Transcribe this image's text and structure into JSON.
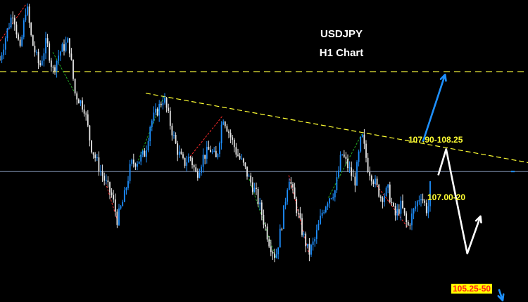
{
  "title": "USDJPY",
  "subtitle": "H1 Chart",
  "colors": {
    "background": "#000000",
    "bull_candle": "#1e90ff",
    "bear_candle": "#e8e8e8",
    "resistance_line": "#cccc33",
    "trendline": "#ffff33",
    "current_price_line": "#7f8fb0",
    "projection_blue": "#1e90ff",
    "projection_white": "#ffffff",
    "zigzag_red": "#ff2a2a",
    "zigzag_green": "#22aa22",
    "label_yellow": "#ffff33",
    "label_red": "#ff1a1a",
    "label_bg": "#ffff00"
  },
  "chart_data": {
    "type": "candlestick",
    "title": "USDJPY",
    "subtitle": "H1 Chart",
    "ylim": [
      104.95,
      109.0
    ],
    "levels": [
      {
        "label": "107.90-108.25",
        "value": 108.04,
        "style": "dashed"
      },
      {
        "label": "107.00-20",
        "value": 107.08,
        "style": "dashed-trendline"
      },
      {
        "label": "105.25-50",
        "value": 105.2,
        "style": "target"
      }
    ],
    "current_price": 106.7,
    "trendline": {
      "from": [
        0.276,
        107.75
      ],
      "to": [
        1.0,
        106.82
      ]
    },
    "path_points": [
      [
        0.0,
        108.2
      ],
      [
        0.012,
        108.55
      ],
      [
        0.025,
        108.85
      ],
      [
        0.038,
        108.3
      ],
      [
        0.05,
        108.95
      ],
      [
        0.06,
        108.45
      ],
      [
        0.075,
        108.1
      ],
      [
        0.088,
        108.45
      ],
      [
        0.1,
        108.05
      ],
      [
        0.113,
        108.3
      ],
      [
        0.13,
        108.45
      ],
      [
        0.142,
        107.75
      ],
      [
        0.16,
        107.55
      ],
      [
        0.172,
        107.05
      ],
      [
        0.185,
        106.8
      ],
      [
        0.2,
        106.55
      ],
      [
        0.213,
        106.35
      ],
      [
        0.222,
        106.05
      ],
      [
        0.235,
        106.35
      ],
      [
        0.248,
        106.8
      ],
      [
        0.262,
        106.85
      ],
      [
        0.275,
        106.95
      ],
      [
        0.285,
        107.35
      ],
      [
        0.297,
        107.5
      ],
      [
        0.31,
        107.7
      ],
      [
        0.322,
        107.35
      ],
      [
        0.335,
        107.0
      ],
      [
        0.348,
        106.8
      ],
      [
        0.36,
        106.9
      ],
      [
        0.372,
        106.65
      ],
      [
        0.385,
        106.9
      ],
      [
        0.398,
        107.0
      ],
      [
        0.41,
        106.85
      ],
      [
        0.422,
        107.45
      ],
      [
        0.435,
        107.2
      ],
      [
        0.448,
        106.95
      ],
      [
        0.46,
        106.8
      ],
      [
        0.472,
        106.6
      ],
      [
        0.485,
        106.4
      ],
      [
        0.497,
        106.1
      ],
      [
        0.51,
        105.75
      ],
      [
        0.522,
        105.55
      ],
      [
        0.535,
        106.05
      ],
      [
        0.547,
        106.65
      ],
      [
        0.56,
        106.25
      ],
      [
        0.572,
        105.9
      ],
      [
        0.585,
        105.6
      ],
      [
        0.597,
        105.8
      ],
      [
        0.61,
        106.15
      ],
      [
        0.622,
        106.35
      ],
      [
        0.635,
        106.45
      ],
      [
        0.647,
        106.95
      ],
      [
        0.66,
        106.75
      ],
      [
        0.672,
        106.55
      ],
      [
        0.685,
        107.2
      ],
      [
        0.697,
        106.75
      ],
      [
        0.71,
        106.55
      ],
      [
        0.722,
        106.35
      ],
      [
        0.735,
        106.45
      ],
      [
        0.748,
        106.1
      ],
      [
        0.76,
        106.25
      ],
      [
        0.772,
        105.95
      ],
      [
        0.785,
        106.2
      ],
      [
        0.797,
        106.4
      ],
      [
        0.81,
        106.15
      ],
      [
        0.818,
        106.75
      ]
    ],
    "projections": [
      {
        "color": "blue",
        "points": [
          [
            0.801,
            107.1
          ],
          [
            0.843,
            108.0
          ]
        ]
      },
      {
        "color": "white",
        "points": [
          [
            0.83,
            106.65
          ],
          [
            0.845,
            107.0
          ],
          [
            0.885,
            105.6
          ],
          [
            0.91,
            106.1
          ]
        ]
      },
      {
        "color": "blue",
        "points": [
          [
            0.945,
            105.12
          ],
          [
            0.952,
            104.97
          ]
        ]
      }
    ]
  }
}
